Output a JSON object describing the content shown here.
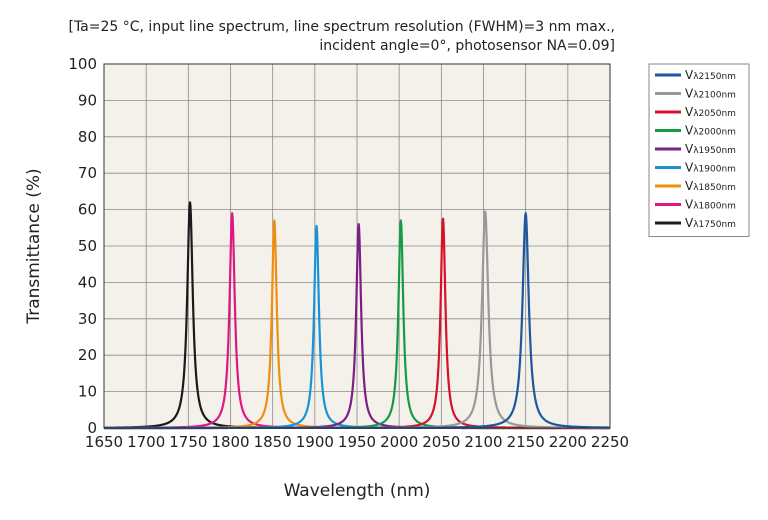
{
  "conditions": {
    "line1": "[Ta=25 °C, input line spectrum, line spectrum resolution (FWHM)=3 nm max.,",
    "line2": "incident angle=0°, photosensor NA=0.09]"
  },
  "chart_data": {
    "type": "line",
    "title": "",
    "xlabel": "Wavelength (nm)",
    "ylabel": "Transmittance (%)",
    "xlim": [
      1650,
      2250
    ],
    "ylim": [
      0,
      100
    ],
    "xticks": [
      1650,
      1700,
      1750,
      1800,
      1850,
      1900,
      1950,
      2000,
      2050,
      2100,
      2150,
      2200,
      2250
    ],
    "yticks": [
      0,
      10,
      20,
      30,
      40,
      50,
      60,
      70,
      80,
      90,
      100
    ],
    "grid": true,
    "legend_position": "right",
    "plot_background": "#f3f1ea",
    "series": [
      {
        "name": "Vλ2150nm",
        "name_main": "V",
        "name_sub": "λ2150nm",
        "color": "#1e56a0",
        "peak_wavelength": 2150,
        "peak_transmittance": 59,
        "fwhm": 9
      },
      {
        "name": "Vλ2100nm",
        "name_main": "V",
        "name_sub": "λ2100nm",
        "color": "#999999",
        "peak_wavelength": 2102,
        "peak_transmittance": 59.5,
        "fwhm": 9
      },
      {
        "name": "Vλ2050nm",
        "name_main": "V",
        "name_sub": "λ2050nm",
        "color": "#d7112b",
        "peak_wavelength": 2052,
        "peak_transmittance": 57.5,
        "fwhm": 7
      },
      {
        "name": "Vλ2000nm",
        "name_main": "V",
        "name_sub": "λ2000nm",
        "color": "#159a45",
        "peak_wavelength": 2002,
        "peak_transmittance": 57,
        "fwhm": 7
      },
      {
        "name": "Vλ1950nm",
        "name_main": "V",
        "name_sub": "λ1950nm",
        "color": "#7b1f84",
        "peak_wavelength": 1952,
        "peak_transmittance": 56,
        "fwhm": 7
      },
      {
        "name": "Vλ1900nm",
        "name_main": "V",
        "name_sub": "λ1900nm",
        "color": "#1a92d6",
        "peak_wavelength": 1902,
        "peak_transmittance": 55.5,
        "fwhm": 7
      },
      {
        "name": "Vλ1850nm",
        "name_main": "V",
        "name_sub": "λ1850nm",
        "color": "#ef8f12",
        "peak_wavelength": 1852,
        "peak_transmittance": 57,
        "fwhm": 7
      },
      {
        "name": "Vλ1800nm",
        "name_main": "V",
        "name_sub": "λ1800nm",
        "color": "#df1781",
        "peak_wavelength": 1802,
        "peak_transmittance": 59,
        "fwhm": 7.5
      },
      {
        "name": "Vλ1750nm",
        "name_main": "V",
        "name_sub": "λ1750nm",
        "color": "#1a1a1a",
        "peak_wavelength": 1752,
        "peak_transmittance": 62,
        "fwhm": 8
      }
    ]
  }
}
